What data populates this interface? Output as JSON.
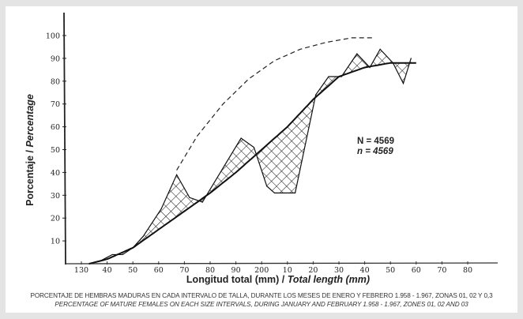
{
  "chart_data": {
    "type": "line",
    "title": "",
    "xlabel_es": "Longitud total (mm)",
    "xlabel_en": "Total length (mm)",
    "ylabel_es": "Porcentaje",
    "ylabel_en": "Percentage",
    "x_tick_labels": [
      "130",
      "40",
      "50",
      "60",
      "70",
      "80",
      "90",
      "200",
      "10",
      "20",
      "30",
      "40",
      "50",
      "60",
      "70",
      "80"
    ],
    "x_tick_values": [
      130,
      140,
      150,
      160,
      170,
      180,
      190,
      200,
      210,
      220,
      230,
      240,
      250,
      260,
      270,
      280
    ],
    "y_tick_labels": [
      "10",
      "20",
      "30",
      "40",
      "50",
      "60",
      "70",
      "80",
      "90",
      "100"
    ],
    "y_tick_values": [
      10,
      20,
      30,
      40,
      50,
      60,
      70,
      80,
      90,
      100
    ],
    "xlim": [
      122,
      290
    ],
    "ylim": [
      0,
      108
    ],
    "grid": false,
    "series": [
      {
        "name": "Observed percentage of mature females",
        "style": "solid-thin",
        "x": [
          133,
          137,
          142,
          146,
          150,
          154,
          161,
          167,
          172,
          177,
          192,
          197,
          202,
          205,
          213,
          221,
          226,
          231,
          237,
          242,
          246,
          251,
          255,
          258
        ],
        "y": [
          0,
          1,
          4,
          4,
          7,
          12,
          24,
          39,
          29,
          27,
          55,
          51,
          34,
          31,
          31,
          74,
          82,
          82,
          92,
          86,
          94,
          88,
          79,
          90
        ]
      },
      {
        "name": "Fitted maturity curve",
        "style": "solid-thick",
        "x": [
          133,
          140,
          150,
          160,
          170,
          180,
          190,
          200,
          210,
          220,
          230,
          240,
          250,
          260
        ],
        "y": [
          0,
          2,
          7,
          15,
          23,
          31,
          40,
          50,
          60,
          72,
          82,
          86,
          88,
          88
        ]
      },
      {
        "name": "Upper dashed curve",
        "style": "dashed",
        "x": [
          167,
          175,
          185,
          195,
          205,
          215,
          225,
          235,
          243
        ],
        "y": [
          41,
          56,
          70,
          81,
          89,
          94,
          97,
          99,
          99
        ]
      }
    ],
    "hatched_areas": "Cross-hatched regions between observed and fitted curves",
    "annotations": [
      "N = 4569",
      "n = 4569"
    ]
  },
  "caption": {
    "es": "PORCENTAJE DE HEMBRAS MADURAS EN CADA INTERVALO DE TALLA, DURANTE LOS MESES DE ENERO Y FEBRERO 1.958 - 1.967, ZONAS 01, 02 Y 0,3",
    "en": "PERCENTAGE OF MATURE FEMALES ON EACH SIZE INTERVALS, DURING JANUARY AND FEBRUARY 1.958 - 1.967, ZONES 01, 02 AND 03"
  },
  "labels": {
    "n_upper": "N = 4569",
    "n_lower": "n = 4569",
    "ylabel": "Porcentaje / Percentage",
    "xlabel_es": "Longitud total (mm) / ",
    "xlabel_en": "Total length (mm)"
  }
}
